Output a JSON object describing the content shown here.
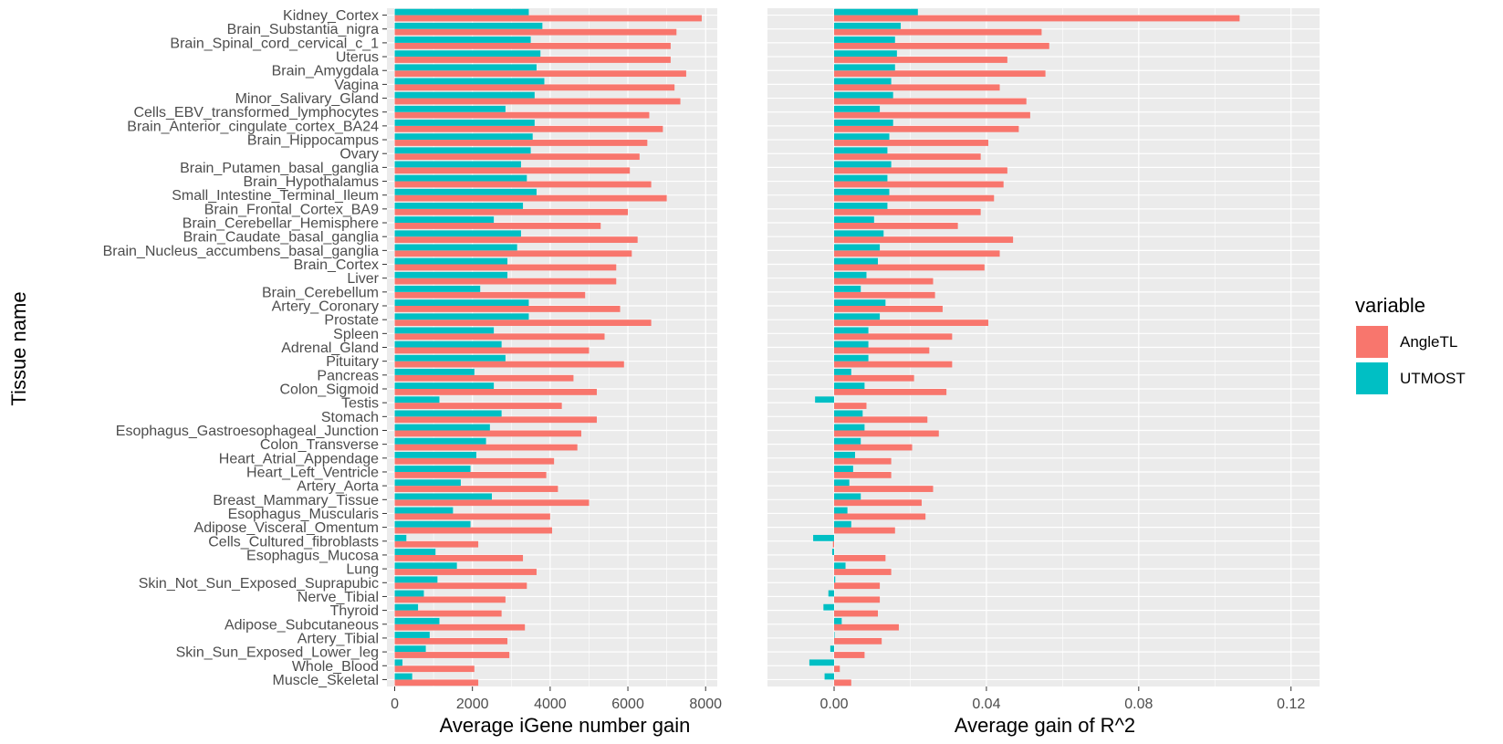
{
  "chart_data": {
    "type": "bar",
    "orientation": "horizontal",
    "grouped": true,
    "ylabel": "Tissue name",
    "categories": [
      "Kidney_Cortex",
      "Brain_Substantia_nigra",
      "Brain_Spinal_cord_cervical_c_1",
      "Uterus",
      "Brain_Amygdala",
      "Vagina",
      "Minor_Salivary_Gland",
      "Cells_EBV_transformed_lymphocytes",
      "Brain_Anterior_cingulate_cortex_BA24",
      "Brain_Hippocampus",
      "Ovary",
      "Brain_Putamen_basal_ganglia",
      "Brain_Hypothalamus",
      "Small_Intestine_Terminal_Ileum",
      "Brain_Frontal_Cortex_BA9",
      "Brain_Cerebellar_Hemisphere",
      "Brain_Caudate_basal_ganglia",
      "Brain_Nucleus_accumbens_basal_ganglia",
      "Brain_Cortex",
      "Liver",
      "Brain_Cerebellum",
      "Artery_Coronary",
      "Prostate",
      "Spleen",
      "Adrenal_Gland",
      "Pituitary",
      "Pancreas",
      "Colon_Sigmoid",
      "Testis",
      "Stomach",
      "Esophagus_Gastroesophageal_Junction",
      "Colon_Transverse",
      "Heart_Atrial_Appendage",
      "Heart_Left_Ventricle",
      "Artery_Aorta",
      "Breast_Mammary_Tissue",
      "Esophagus_Muscularis",
      "Adipose_Visceral_Omentum",
      "Cells_Cultured_fibroblasts",
      "Esophagus_Mucosa",
      "Lung",
      "Skin_Not_Sun_Exposed_Suprapubic",
      "Nerve_Tibial",
      "Thyroid",
      "Adipose_Subcutaneous",
      "Artery_Tibial",
      "Skin_Sun_Exposed_Lower_leg",
      "Whole_Blood",
      "Muscle_Skeletal"
    ],
    "legend": {
      "title": "variable",
      "position": "right"
    },
    "series_colors": {
      "AngleTL": "#F8766D",
      "UTMOST": "#00BFC4"
    },
    "panels": [
      {
        "xlabel": "Average iGene number gain",
        "xlim": [
          -200,
          8300
        ],
        "xticks": [
          0,
          2000,
          4000,
          6000,
          8000
        ],
        "xtick_labels": [
          "0",
          "2000",
          "4000",
          "6000",
          "8000"
        ],
        "series": [
          {
            "name": "AngleTL",
            "values": [
              7900,
              7250,
              7100,
              7100,
              7500,
              7200,
              7350,
              6550,
              6900,
              6500,
              6300,
              6050,
              6600,
              7000,
              6000,
              5300,
              6250,
              6100,
              5700,
              5700,
              4900,
              5800,
              6600,
              5400,
              5000,
              5900,
              4600,
              5200,
              4300,
              5200,
              4800,
              4700,
              4100,
              3900,
              4200,
              5000,
              4000,
              4050,
              2150,
              3300,
              3650,
              3400,
              2850,
              2750,
              3350,
              2900,
              2950,
              2050,
              2150
            ]
          },
          {
            "name": "UTMOST",
            "values": [
              3450,
              3800,
              3500,
              3750,
              3650,
              3850,
              3600,
              2850,
              3600,
              3550,
              3500,
              3250,
              3400,
              3650,
              3300,
              2550,
              3250,
              3150,
              2900,
              2900,
              2200,
              3450,
              3450,
              2550,
              2750,
              2850,
              2050,
              2550,
              1150,
              2750,
              2450,
              2350,
              2100,
              1950,
              1700,
              2500,
              1500,
              1950,
              300,
              1050,
              1600,
              1100,
              750,
              600,
              1150,
              900,
              800,
              200,
              450
            ]
          }
        ]
      },
      {
        "xlabel": "Average gain of R^2",
        "xlim": [
          -0.0175,
          0.1275
        ],
        "xticks": [
          0,
          0.04,
          0.08,
          0.12
        ],
        "xtick_labels": [
          "0.00",
          "0.04",
          "0.08",
          "0.12"
        ],
        "series": [
          {
            "name": "AngleTL",
            "values": [
              0.1065,
              0.0545,
              0.0565,
              0.0455,
              0.0555,
              0.0435,
              0.0505,
              0.0515,
              0.0485,
              0.0405,
              0.0385,
              0.0455,
              0.0445,
              0.042,
              0.0385,
              0.0325,
              0.047,
              0.0435,
              0.0395,
              0.026,
              0.0265,
              0.0285,
              0.0405,
              0.031,
              0.025,
              0.031,
              0.021,
              0.0295,
              0.0085,
              0.0245,
              0.0275,
              0.0205,
              0.015,
              0.015,
              0.026,
              0.023,
              0.024,
              0.016,
              -0.0003,
              0.0135,
              0.015,
              0.012,
              0.012,
              0.0115,
              0.017,
              0.0125,
              0.008,
              0.0015,
              0.0045
            ]
          },
          {
            "name": "UTMOST",
            "values": [
              0.022,
              0.0175,
              0.016,
              0.0165,
              0.016,
              0.015,
              0.0155,
              0.012,
              0.0155,
              0.0145,
              0.014,
              0.015,
              0.014,
              0.0145,
              0.014,
              0.0105,
              0.013,
              0.012,
              0.0115,
              0.0085,
              0.007,
              0.0135,
              0.012,
              0.009,
              0.009,
              0.009,
              0.0045,
              0.008,
              -0.005,
              0.0075,
              0.008,
              0.007,
              0.0055,
              0.005,
              0.004,
              0.007,
              0.0035,
              0.0045,
              -0.0055,
              -0.0005,
              0.003,
              0.0003,
              -0.0015,
              -0.0028,
              0.002,
              0.0,
              -0.001,
              -0.0065,
              -0.0025
            ]
          }
        ]
      }
    ]
  }
}
